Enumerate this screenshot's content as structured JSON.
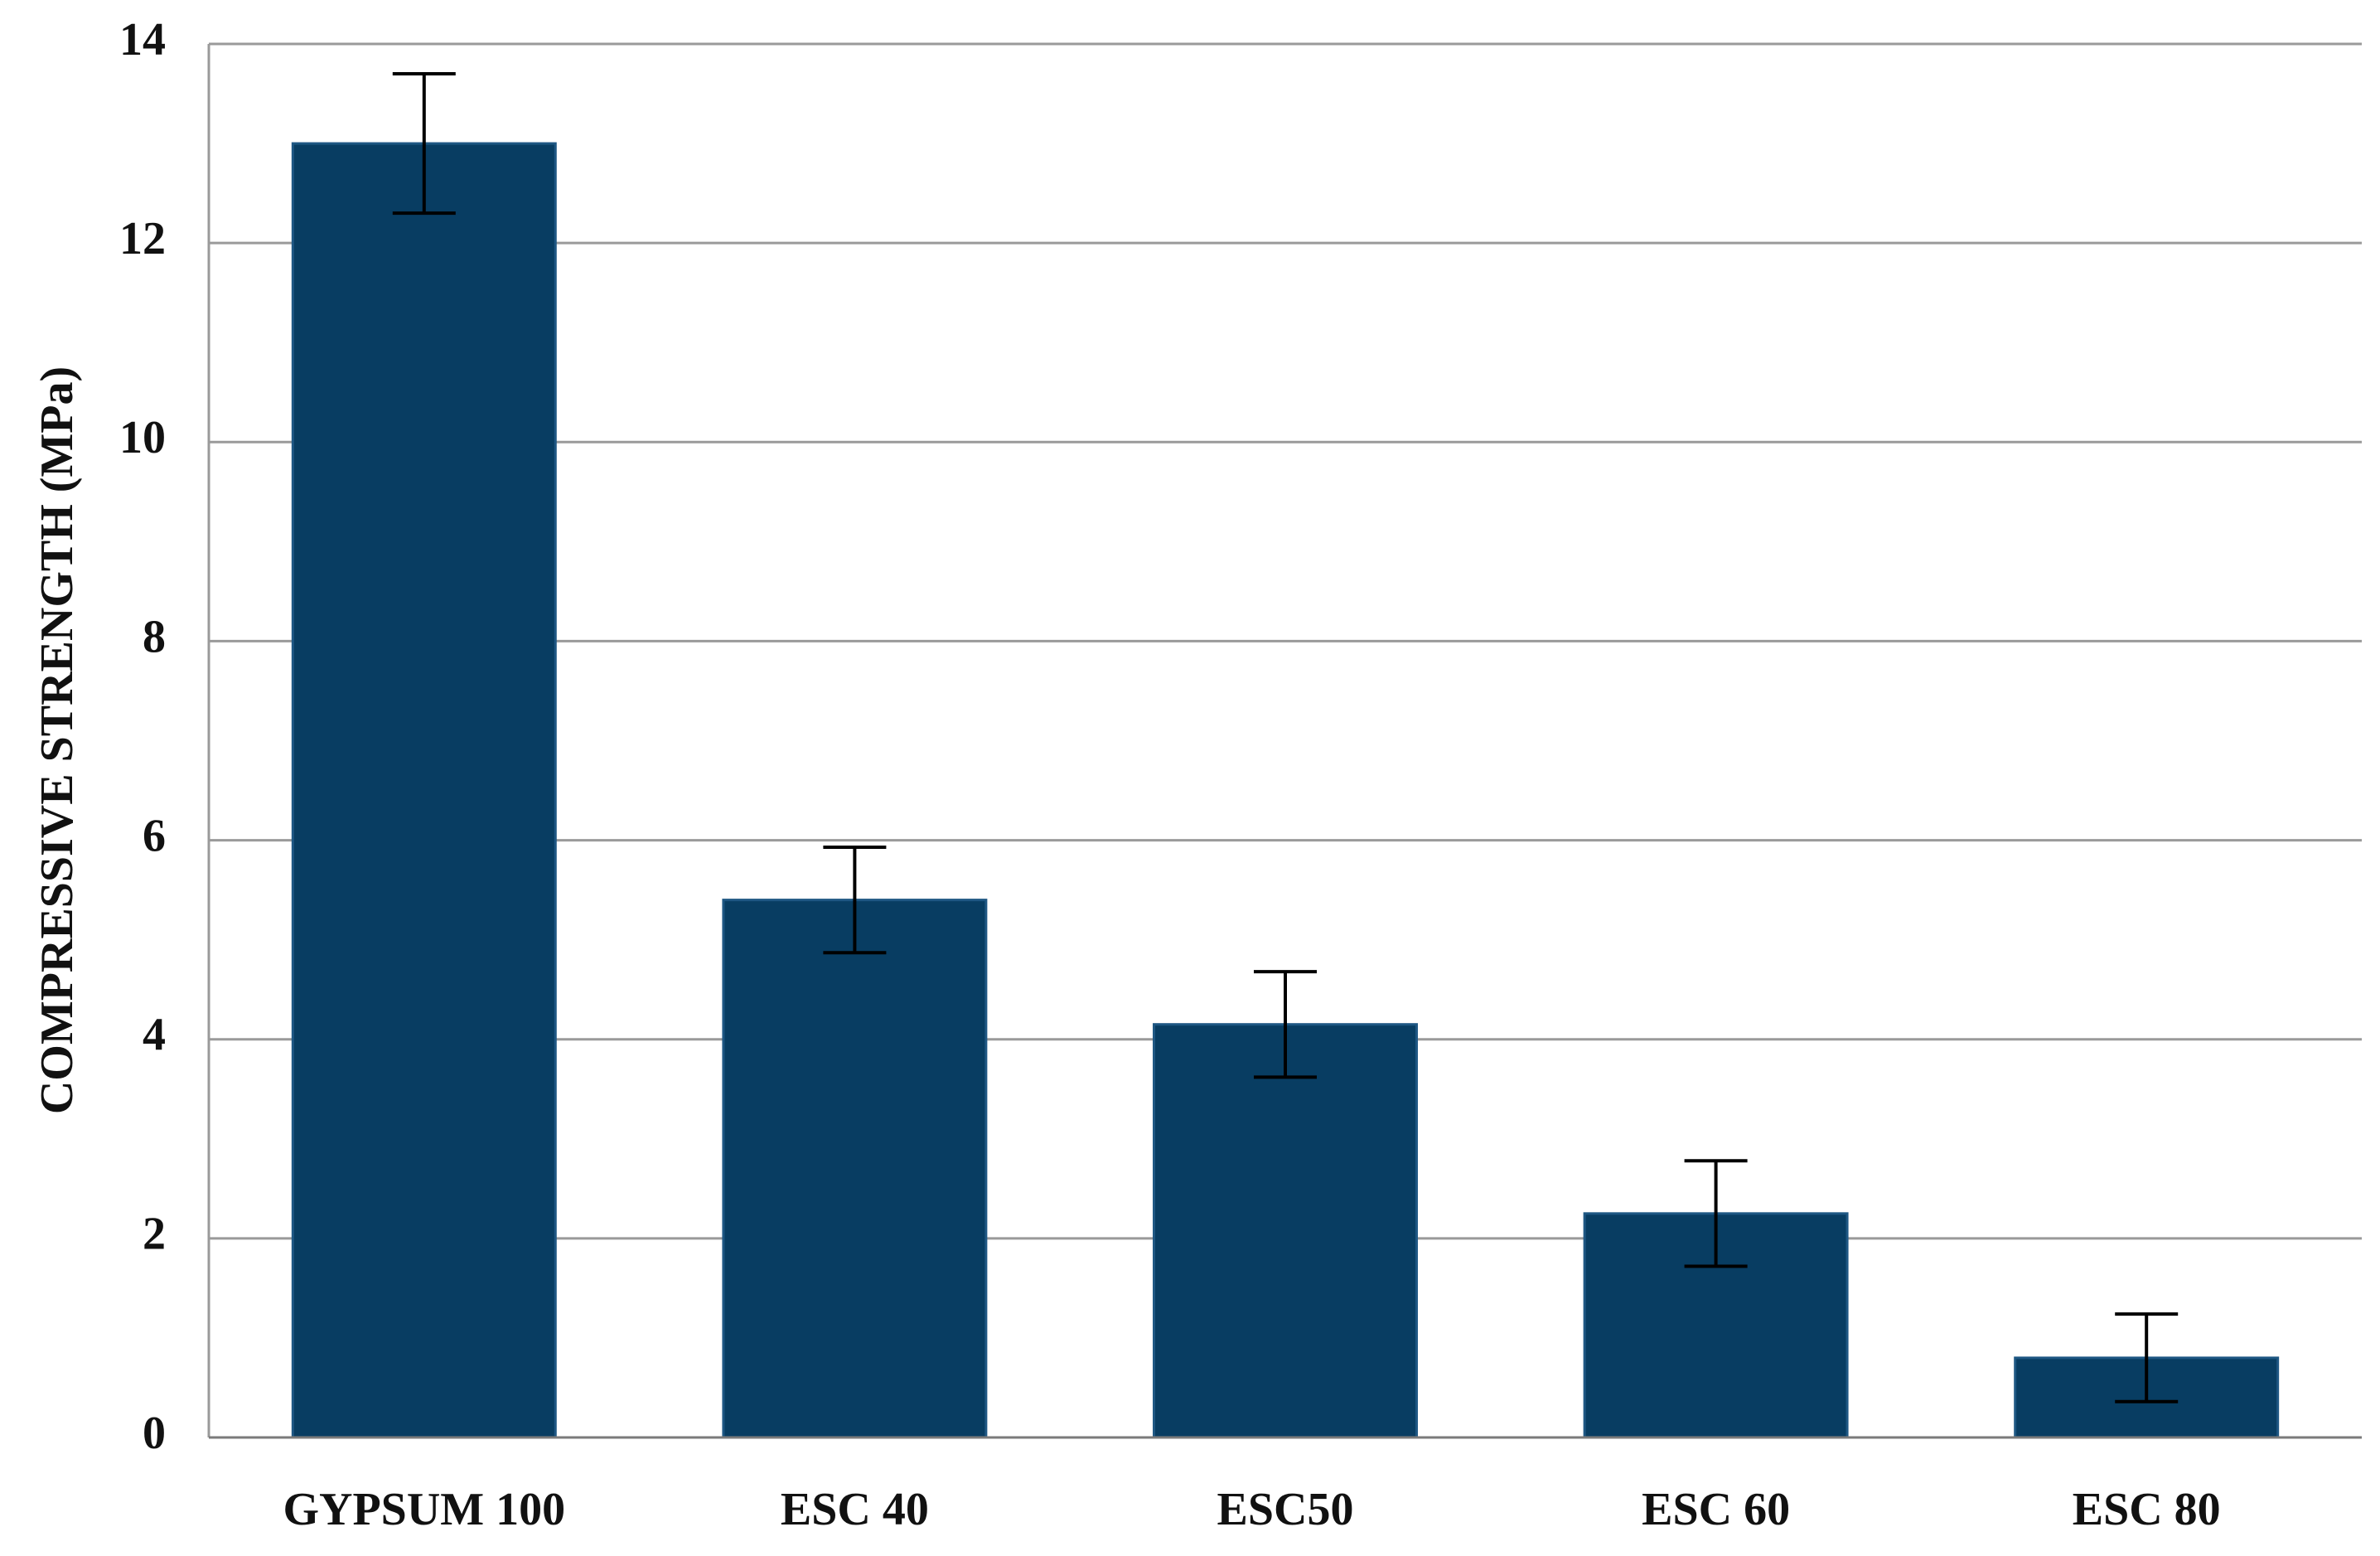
{
  "chart_data": {
    "type": "bar",
    "y_label": "COMPRESSIVE STRENGTH (MPa)",
    "categories": [
      "GYPSUM 100",
      "ESC 40",
      "ESC50",
      "ESC 60",
      "ESC 80"
    ],
    "values": [
      13.0,
      5.4,
      4.15,
      2.25,
      0.8
    ],
    "errors": [
      0.7,
      0.53,
      0.53,
      0.53,
      0.44
    ],
    "color": "#083d62",
    "ylim": [
      0,
      14
    ],
    "yticks": [
      0,
      2,
      4,
      6,
      8,
      10,
      12,
      14
    ],
    "grid": true
  }
}
